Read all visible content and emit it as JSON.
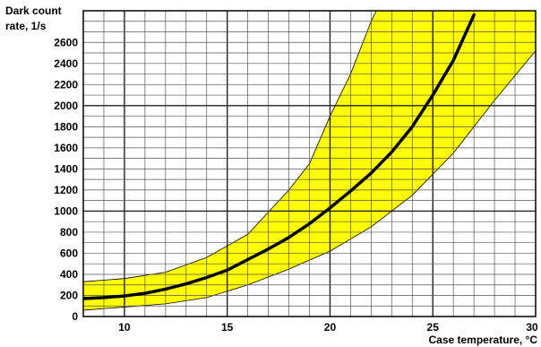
{
  "chart_data": {
    "type": "area",
    "title": "",
    "ylabel_line1": "Dark count",
    "ylabel_line2": "rate, 1/s",
    "xlabel": "Case temperature, °C",
    "xlim": [
      8,
      30
    ],
    "ylim": [
      0,
      2900
    ],
    "x_ticks": [
      10,
      15,
      20,
      25,
      30
    ],
    "y_ticks": [
      0,
      200,
      400,
      600,
      800,
      1000,
      1200,
      1400,
      1600,
      1800,
      2000,
      2200,
      2400,
      2600
    ],
    "x_minor_step": 1,
    "y_minor_step": 100,
    "grid": true,
    "band_color": "#ffff00",
    "curve_color": "#000000",
    "series": [
      {
        "role": "typical",
        "x": [
          8,
          9,
          10,
          11,
          12,
          13,
          14,
          15,
          16,
          17,
          18,
          19,
          20,
          21,
          22,
          23,
          24,
          25,
          26,
          27
        ],
        "values": [
          170,
          180,
          195,
          220,
          260,
          310,
          370,
          440,
          540,
          640,
          750,
          880,
          1030,
          1190,
          1360,
          1560,
          1800,
          2100,
          2430,
          2860
        ]
      },
      {
        "role": "upper",
        "x": [
          8,
          10,
          12,
          14,
          16,
          18,
          19,
          20,
          21,
          22,
          22.5
        ],
        "values": [
          330,
          360,
          420,
          560,
          780,
          1200,
          1450,
          1900,
          2300,
          2800,
          3000
        ]
      },
      {
        "role": "lower",
        "x": [
          8,
          10,
          12,
          14,
          16,
          18,
          20,
          22,
          24,
          26,
          28,
          30
        ],
        "values": [
          60,
          90,
          120,
          180,
          300,
          450,
          620,
          850,
          1150,
          1550,
          2050,
          2520
        ]
      }
    ]
  }
}
